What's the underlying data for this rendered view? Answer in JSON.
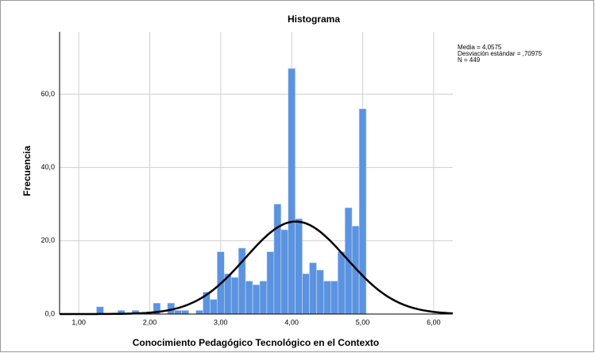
{
  "chart_data": {
    "type": "histogram",
    "title": "Histograma",
    "x_label": "Conocimiento Pedagógico Tecnológico en el Contexto",
    "y_label": "Frecuencia",
    "bins": [
      1.25,
      1.35,
      1.45,
      1.55,
      1.65,
      1.75,
      1.85,
      1.95,
      2.05,
      2.15,
      2.25,
      2.35,
      2.45,
      2.55,
      2.65,
      2.75,
      2.85,
      2.95,
      3.05,
      3.15,
      3.25,
      3.35,
      3.45,
      3.55,
      3.65,
      3.75,
      3.85,
      3.95,
      4.05,
      4.15,
      4.25,
      4.35,
      4.45,
      4.55,
      4.65,
      4.75,
      4.85,
      4.95,
      5.05
    ],
    "values": [
      2,
      0,
      0,
      1,
      0,
      1,
      0,
      0,
      3,
      0,
      3,
      1,
      1,
      0,
      1,
      6,
      4,
      17,
      11,
      10,
      18,
      9,
      8,
      9,
      17,
      30,
      23,
      67,
      26,
      11,
      14,
      12,
      9,
      9,
      17,
      29,
      24,
      56
    ],
    "color": "#5b93e0",
    "xlim": [
      0.73,
      6.27
    ],
    "xticks": [
      {
        "value": 1,
        "label": "1,00"
      },
      {
        "value": 2,
        "label": "2,00"
      },
      {
        "value": 3,
        "label": "3,00"
      },
      {
        "value": 4,
        "label": "4,00"
      },
      {
        "value": 5,
        "label": "5,00"
      },
      {
        "value": 6,
        "label": "6,00"
      }
    ],
    "ylim": [
      0,
      77
    ],
    "yticks": [
      {
        "value": 0,
        "label": "0,0"
      },
      {
        "value": 20,
        "label": "20,0"
      },
      {
        "value": 40,
        "label": "40,0"
      },
      {
        "value": 60,
        "label": "60,0"
      }
    ],
    "grid": true,
    "normal_curve": {
      "mean": 4.0575,
      "sd": 0.70975,
      "n": 449
    },
    "stats": [
      "Media = 4,0575",
      "Desviación estándar = ,70975",
      "N = 449"
    ]
  }
}
